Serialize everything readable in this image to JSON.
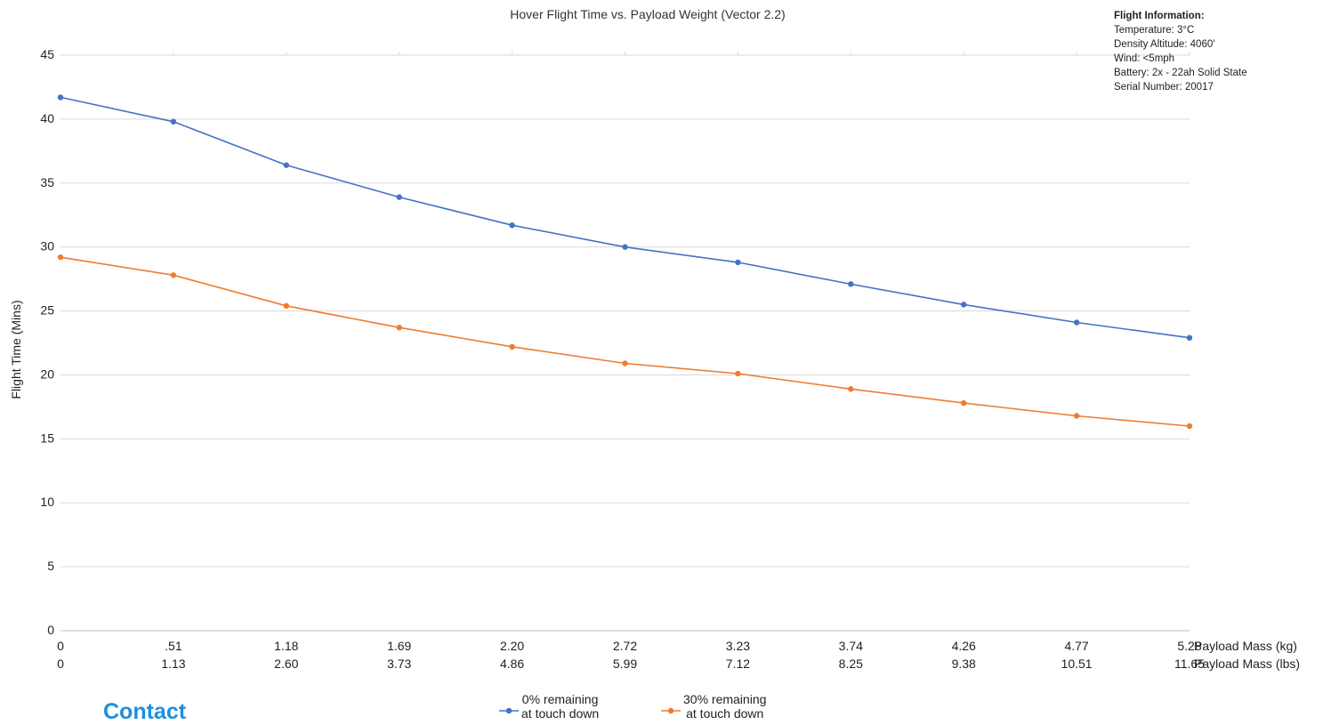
{
  "chart_data": {
    "type": "line",
    "title": "Hover Flight Time vs. Payload Weight (Vector 2.2)",
    "ylabel": "Flight Time (Mins)",
    "ylim": [
      0,
      45
    ],
    "yticks": [
      0,
      5,
      10,
      15,
      20,
      25,
      30,
      35,
      40,
      45
    ],
    "x_axes": [
      {
        "label": "Payload Mass (kg)",
        "ticks": [
          "0",
          ".51",
          "1.18",
          "1.69",
          "2.20",
          "2.72",
          "3.23",
          "3.74",
          "4.26",
          "4.77",
          "5.28"
        ]
      },
      {
        "label": "Payload Mass (lbs)",
        "ticks": [
          "0",
          "1.13",
          "2.60",
          "3.73",
          "4.86",
          "5.99",
          "7.12",
          "8.25",
          "9.38",
          "10.51",
          "11.65"
        ]
      }
    ],
    "series": [
      {
        "name": "0% remaining at touch down",
        "name_lines": [
          "0% remaining",
          "at touch down"
        ],
        "color": "#4472c4",
        "values": [
          41.7,
          39.8,
          36.4,
          33.9,
          31.7,
          30.0,
          28.8,
          27.1,
          25.5,
          24.1,
          22.9
        ]
      },
      {
        "name": "30% remaining at touch down",
        "name_lines": [
          "30% remaining",
          "at touch down"
        ],
        "color": "#ed7d31",
        "values": [
          29.2,
          27.8,
          25.4,
          23.7,
          22.2,
          20.9,
          20.1,
          18.9,
          17.8,
          16.8,
          16.0
        ]
      }
    ],
    "grid": "horizontal",
    "legend": "bottom"
  },
  "flight_info": {
    "heading": "Flight Information:",
    "lines": [
      "Temperature: 3°C",
      "Density Altitude: 4060'",
      "Wind: <5mph",
      "Battery: 2x - 22ah Solid State",
      "Serial Number: 20017"
    ]
  },
  "contact_label": "Contact"
}
